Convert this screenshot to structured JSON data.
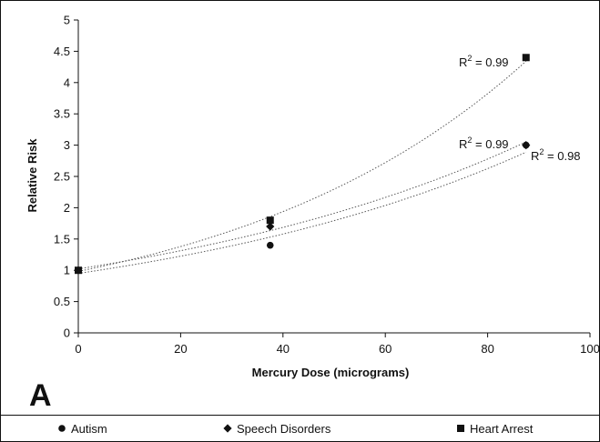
{
  "panel_label": "A",
  "colors": {
    "ink": "#111111",
    "background": "#ffffff",
    "trendline": "#555555"
  },
  "chart_data": {
    "type": "scatter",
    "xlabel": "Mercury Dose (micrograms)",
    "ylabel": "Relative Risk",
    "xlim": [
      0,
      100
    ],
    "ylim": [
      0,
      5
    ],
    "x_ticks": [
      0,
      20,
      40,
      60,
      80,
      100
    ],
    "y_ticks": [
      0,
      0.5,
      1,
      1.5,
      2,
      2.5,
      3,
      3.5,
      4,
      4.5,
      5
    ],
    "grid": false,
    "legend_position": "bottom",
    "series": [
      {
        "name": "Autism",
        "marker": "circle",
        "x": [
          0,
          37.5,
          87.5
        ],
        "y": [
          1,
          1.4,
          3.0
        ],
        "trendline": "exponential",
        "r2_label": "R² = 0.98"
      },
      {
        "name": "Speech Disorders",
        "marker": "diamond",
        "x": [
          0,
          37.5,
          87.5
        ],
        "y": [
          1,
          1.7,
          3.0
        ],
        "trendline": "exponential",
        "r2_label": "R² = 0.99"
      },
      {
        "name": "Heart Arrest",
        "marker": "square",
        "x": [
          0,
          37.5,
          87.5
        ],
        "y": [
          1,
          1.8,
          4.4
        ],
        "trendline": "exponential",
        "r2_label": "R² = 0.99"
      }
    ]
  }
}
